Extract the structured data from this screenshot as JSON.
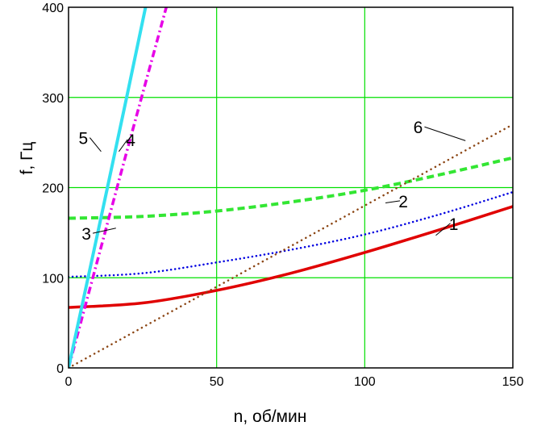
{
  "chart_data": {
    "type": "line",
    "xlabel": "n, об/мин",
    "ylabel": "f, Гц",
    "xlim": [
      0,
      150
    ],
    "ylim": [
      0,
      400
    ],
    "x_ticks": [
      0,
      50,
      100,
      150
    ],
    "y_ticks": [
      0,
      100,
      200,
      300,
      400
    ],
    "grid": true,
    "colors": {
      "grid": "#00e000",
      "frame": "#000000",
      "curve_1": "#e00000",
      "curve_2": "#0000e0",
      "curve_3": "#33e633",
      "curve_4": "#e600e6",
      "curve_5": "#33e0f0",
      "curve_6": "#8b4513"
    },
    "series": [
      {
        "label": "1",
        "style": "solid",
        "x": [
          0,
          25,
          50,
          75,
          100,
          125,
          150
        ],
        "y": [
          67,
          72,
          86,
          105,
          128,
          153,
          179
        ]
      },
      {
        "label": "2",
        "style": "dotted",
        "x": [
          0,
          25,
          50,
          75,
          100,
          125,
          150
        ],
        "y": [
          101,
          105,
          117,
          131,
          148,
          170,
          195
        ]
      },
      {
        "label": "3",
        "style": "dashed",
        "x": [
          0,
          25,
          50,
          75,
          100,
          125,
          150
        ],
        "y": [
          166,
          168,
          174,
          184,
          197,
          214,
          233
        ]
      },
      {
        "label": "4",
        "style": "dash-dot",
        "x": [
          0,
          10,
          20,
          33
        ],
        "y": [
          0,
          122,
          244,
          400
        ]
      },
      {
        "label": "5",
        "style": "solid",
        "x": [
          0,
          10,
          20,
          26
        ],
        "y": [
          0,
          152,
          306,
          400
        ]
      },
      {
        "label": "6",
        "style": "dotted",
        "x": [
          0,
          50,
          100,
          150
        ],
        "y": [
          0,
          90,
          180,
          270
        ]
      }
    ],
    "annotations": [
      {
        "text": "1",
        "x": 130,
        "y": 155
      },
      {
        "text": "2",
        "x": 113,
        "y": 180
      },
      {
        "text": "3",
        "x": 6,
        "y": 144
      },
      {
        "text": "4",
        "x": 21,
        "y": 248
      },
      {
        "text": "5",
        "x": 5,
        "y": 250
      },
      {
        "text": "6",
        "x": 118,
        "y": 262
      }
    ]
  }
}
